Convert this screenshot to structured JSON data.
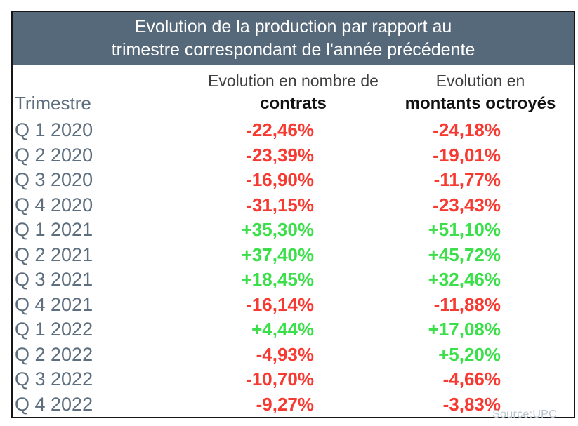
{
  "chart_data": {
    "type": "table",
    "title": "Evolution de la production par rapport au trimestre correspondant de l'année précédente",
    "columns": [
      "Trimestre",
      "Evolution en nombre de contrats",
      "Evolution en montants octroyés"
    ],
    "rows": [
      [
        "Q 1 2020",
        "-22,46%",
        "-24,18%"
      ],
      [
        "Q 2 2020",
        "-23,39%",
        "-19,01%"
      ],
      [
        "Q 3 2020",
        "-16,90%",
        "-11,77%"
      ],
      [
        "Q 4 2020",
        "-31,15%",
        "-23,43%"
      ],
      [
        "Q 1 2021",
        "+35,30%",
        "+51,10%"
      ],
      [
        "Q 2 2021",
        "+37,40%",
        "+45,72%"
      ],
      [
        "Q 3 2021",
        "+18,45%",
        "+32,46%"
      ],
      [
        "Q 4 2021",
        "-16,14%",
        "-11,88%"
      ],
      [
        "Q 1 2022",
        "+4,44%",
        "+17,08%"
      ],
      [
        "Q 2 2022",
        "-4,93%",
        "+5,20%"
      ],
      [
        "Q 3 2022",
        "-10,70%",
        "-4,66%"
      ],
      [
        "Q 4 2022",
        "-9,27%",
        "-3,83%"
      ]
    ],
    "source": "Source:UPC"
  },
  "title": {
    "line1": "Evolution de la production par rapport au",
    "line2": "trimestre correspondant de l'année précédente"
  },
  "header": {
    "quarter_label": "Trimestre",
    "contracts_line1": "Evolution en nombre de",
    "contracts_line2": "contrats",
    "amounts_line1": "Evolution en",
    "amounts_line2": "montants octroyés"
  },
  "footer": {
    "source": "Source:UPC"
  },
  "colors": {
    "positive": "#3bdf4a",
    "negative": "#f73a31",
    "header_bg": "#56697a",
    "quarter_text": "#5d6e7e",
    "source_text": "#b9c3ce"
  }
}
